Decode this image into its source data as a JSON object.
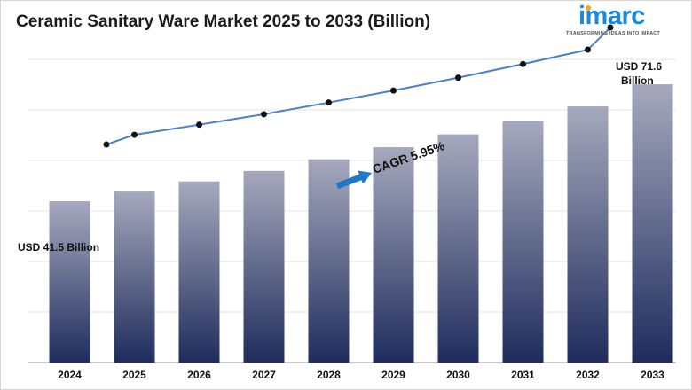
{
  "title": "Ceramic Sanitary Ware Market 2025 to 2033 (Billion)",
  "logo": {
    "word": "imarc",
    "tagline": "TRANSFORMING IDEAS INTO IMPACT"
  },
  "annotations": {
    "start_label": "USD 41.5 Billion",
    "end_label_line1": "USD 71.6",
    "end_label_line2": "Billion",
    "cagr": "CAGR 5.95%"
  },
  "colors": {
    "bar_top": "#a6a9bd",
    "bar_bottom": "#1f2c5c",
    "line": "#4a7fd0",
    "arrow": "#1e78c8",
    "logo": "#1e88d6"
  },
  "chart_data": {
    "type": "bar",
    "categories": [
      "2024",
      "2025",
      "2026",
      "2027",
      "2028",
      "2029",
      "2030",
      "2031",
      "2032",
      "2033"
    ],
    "values": [
      41.5,
      44.0,
      46.6,
      49.3,
      52.3,
      55.4,
      58.7,
      62.2,
      65.9,
      71.6
    ],
    "trend_line": [
      41.5,
      44.0,
      46.6,
      49.3,
      52.3,
      55.4,
      58.7,
      62.2,
      65.9,
      71.6
    ],
    "title": "Ceramic Sanitary Ware Market 2025 to 2033 (Billion)",
    "xlabel": "",
    "ylabel": "",
    "ylim": [
      0,
      80
    ],
    "grid": true,
    "legend": "none"
  }
}
